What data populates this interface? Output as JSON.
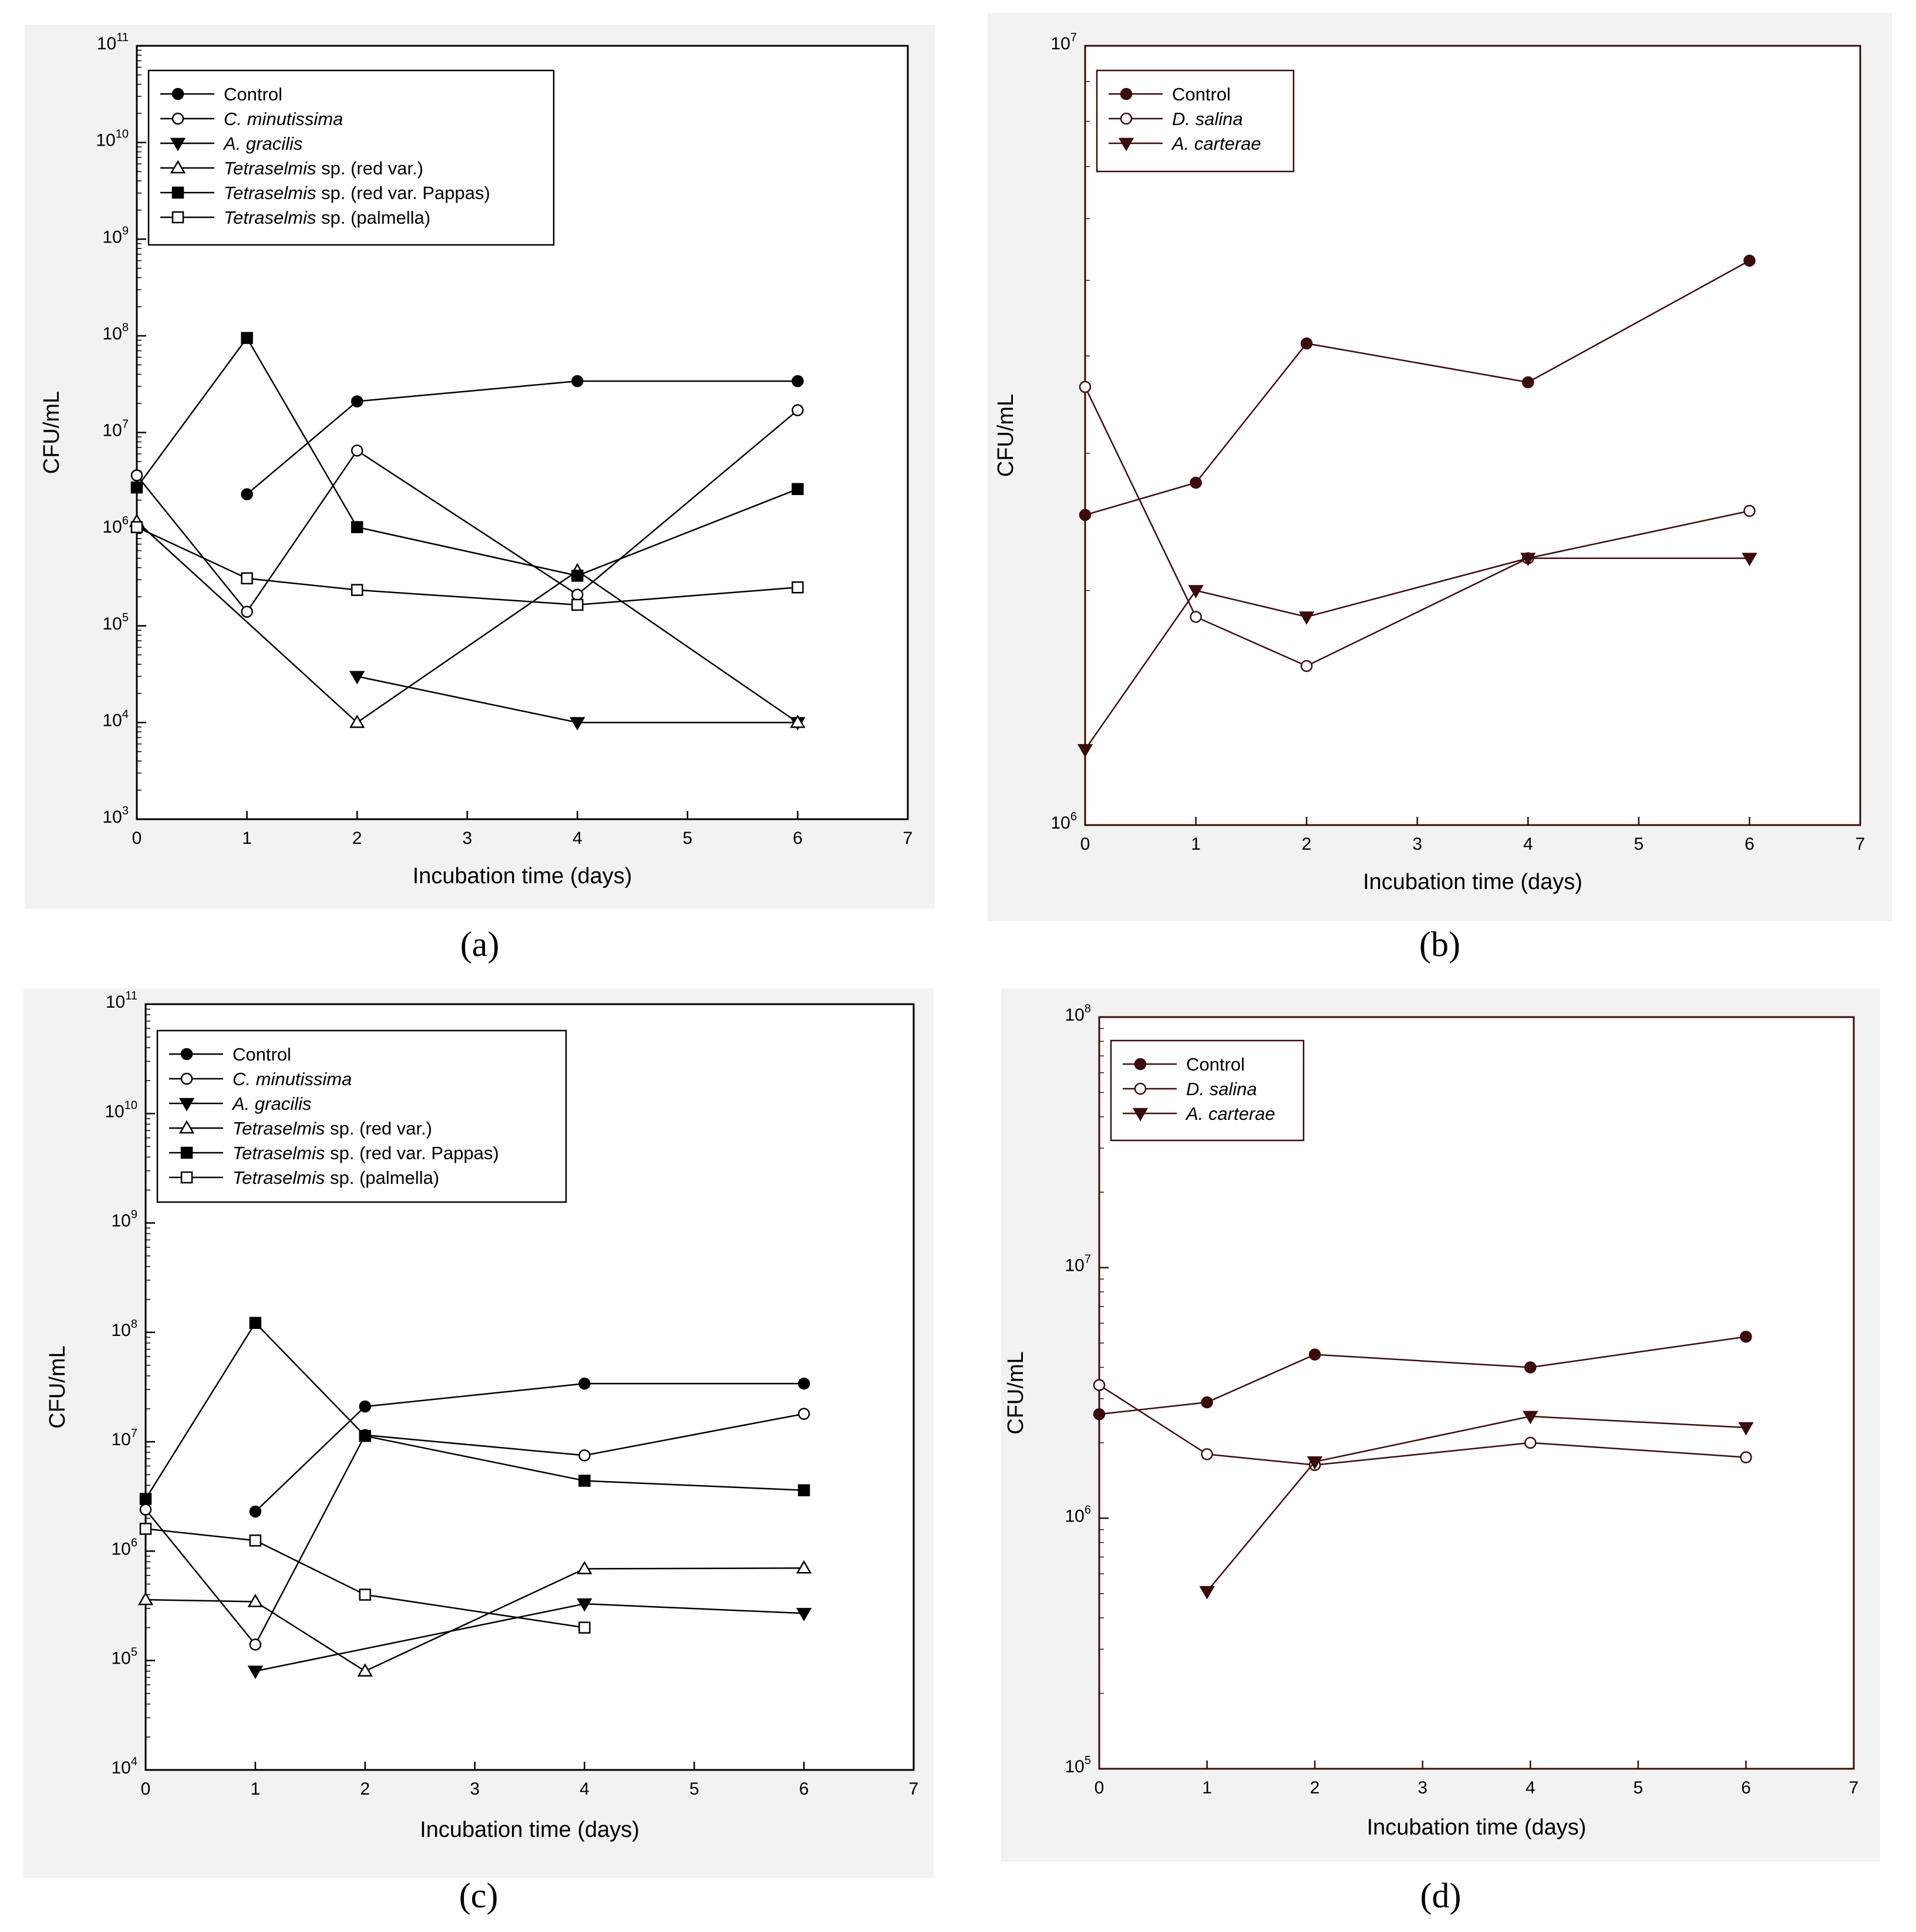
{
  "chart_data": [
    {
      "panel": "(a)",
      "type": "line",
      "xlabel": "Incubation time (days)",
      "ylabel": "CFU/mL",
      "xlim": [
        0,
        7
      ],
      "xticks": [
        0,
        1,
        2,
        3,
        4,
        5,
        6,
        7
      ],
      "yscale": "log",
      "ylim_exp": [
        3,
        11
      ],
      "legend_position": "top-left",
      "series": [
        {
          "name": "Control",
          "marker": "filled-circle",
          "x": [
            1,
            2,
            4,
            6
          ],
          "y": [
            2300000,
            21000000,
            34000000,
            34000000
          ]
        },
        {
          "name": "C. minutissima",
          "marker": "open-circle",
          "x": [
            0,
            1,
            2,
            4,
            6
          ],
          "y": [
            3600000,
            140000,
            6500000,
            210000,
            17000000
          ]
        },
        {
          "name": "A. gracilis",
          "marker": "filled-triangle-down",
          "x": [
            2,
            4,
            6
          ],
          "y": [
            30000,
            10000,
            10000
          ]
        },
        {
          "name": "Tetraselmis sp. (red var.)",
          "marker": "open-triangle-up",
          "x": [
            0,
            2,
            4,
            6
          ],
          "y": [
            1200000,
            10000,
            370000,
            10000
          ]
        },
        {
          "name": "Tetraselmis sp. (red var. Pappas)",
          "marker": "filled-square",
          "x": [
            0,
            1,
            2,
            4,
            6
          ],
          "y": [
            2700000,
            95000000,
            1050000,
            330000,
            2600000
          ]
        },
        {
          "name": "Tetraselmis sp. (palmella)",
          "marker": "open-square",
          "x": [
            0,
            1,
            2,
            4,
            6
          ],
          "y": [
            1050000,
            310000,
            235000,
            165000,
            250000
          ]
        }
      ]
    },
    {
      "panel": "(b)",
      "type": "line",
      "xlabel": "Incubation time (days)",
      "ylabel": "CFU/mL",
      "xlim": [
        0,
        7
      ],
      "xticks": [
        0,
        1,
        2,
        3,
        4,
        5,
        6,
        7
      ],
      "yscale": "log",
      "ylim_exp": [
        6,
        7
      ],
      "legend_position": "top-left",
      "series": [
        {
          "name": "Control",
          "marker": "filled-circle",
          "x": [
            0,
            1,
            2,
            4,
            6
          ],
          "y": [
            2500000,
            2750000,
            4150000,
            3700000,
            5300000
          ]
        },
        {
          "name": "D. salina",
          "marker": "open-circle",
          "x": [
            0,
            1,
            2,
            4,
            6
          ],
          "y": [
            3650000,
            1850000,
            1600000,
            2200000,
            2530000
          ]
        },
        {
          "name": "A. carterae",
          "marker": "filled-triangle-down",
          "x": [
            0,
            1,
            2,
            4,
            6
          ],
          "y": [
            1250000,
            2000000,
            1850000,
            2200000,
            2200000
          ]
        }
      ]
    },
    {
      "panel": "(c)",
      "type": "line",
      "xlabel": "Incubation time (days)",
      "ylabel": "CFU/mL",
      "xlim": [
        0,
        7
      ],
      "xticks": [
        0,
        1,
        2,
        3,
        4,
        5,
        6,
        7
      ],
      "yscale": "log",
      "ylim_exp": [
        4,
        11
      ],
      "legend_position": "top-left",
      "series": [
        {
          "name": "Control",
          "marker": "filled-circle",
          "x": [
            1,
            2,
            4,
            6
          ],
          "y": [
            2300000,
            21000000,
            34000000,
            34000000
          ]
        },
        {
          "name": "C. minutissima",
          "marker": "open-circle",
          "x": [
            0,
            1,
            2,
            4,
            6
          ],
          "y": [
            2400000,
            140000,
            11500000,
            7500000,
            18000000
          ]
        },
        {
          "name": "A. gracilis",
          "marker": "filled-triangle-down",
          "x": [
            1,
            4,
            6
          ],
          "y": [
            80000,
            330000,
            270000
          ]
        },
        {
          "name": "Tetraselmis sp. (red var.)",
          "marker": "open-triangle-up",
          "x": [
            0,
            1,
            2,
            4,
            6
          ],
          "y": [
            360000,
            345000,
            80000,
            690000,
            700000
          ]
        },
        {
          "name": "Tetraselmis sp. (red var. Pappas)",
          "marker": "filled-square",
          "x": [
            0,
            1,
            2,
            4,
            6
          ],
          "y": [
            3000000,
            122000000,
            11300000,
            4400000,
            3600000
          ]
        },
        {
          "name": "Tetraselmis sp. (palmella)",
          "marker": "open-square",
          "x": [
            0,
            1,
            2,
            4
          ],
          "y": [
            1600000,
            1250000,
            400000,
            200000
          ]
        }
      ]
    },
    {
      "panel": "(d)",
      "type": "line",
      "xlabel": "Incubation time (days)",
      "ylabel": "CFU/mL",
      "xlim": [
        0,
        7
      ],
      "xticks": [
        0,
        1,
        2,
        3,
        4,
        5,
        6,
        7
      ],
      "yscale": "log",
      "ylim_exp": [
        5,
        8
      ],
      "legend_position": "top-left",
      "series": [
        {
          "name": "Control",
          "marker": "filled-circle",
          "x": [
            0,
            1,
            2,
            4,
            6
          ],
          "y": [
            2600000,
            2900000,
            4500000,
            4000000,
            5300000
          ]
        },
        {
          "name": "D. salina",
          "marker": "open-circle",
          "x": [
            0,
            1,
            2,
            4,
            6
          ],
          "y": [
            3400000,
            1800000,
            1630000,
            2000000,
            1750000
          ]
        },
        {
          "name": "A. carterae",
          "marker": "filled-triangle-down",
          "x": [
            1,
            2,
            4,
            6
          ],
          "y": [
            510000,
            1680000,
            2550000,
            2300000
          ]
        }
      ]
    }
  ]
}
